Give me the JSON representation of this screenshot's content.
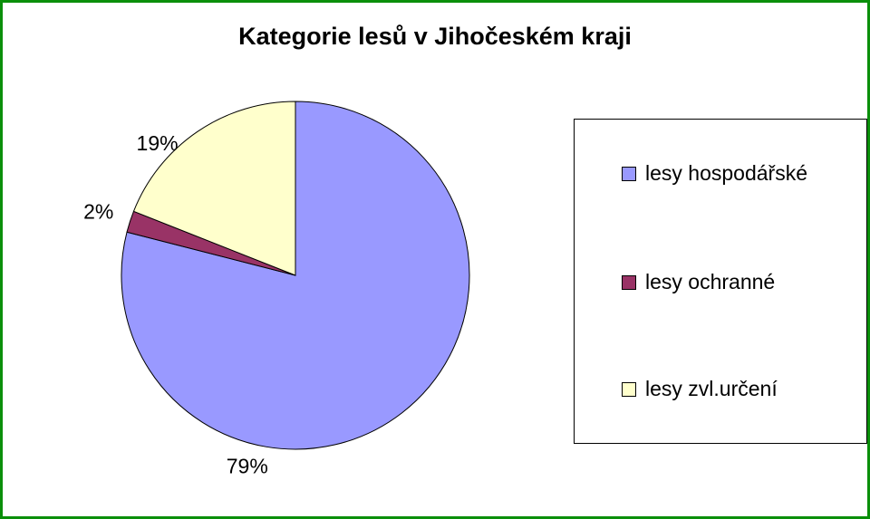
{
  "chart_data": {
    "type": "pie",
    "title": "Kategorie lesů v Jihočeském kraji",
    "categories": [
      "lesy hospodářské",
      "lesy ochranné",
      "lesy zvl.určení"
    ],
    "values": [
      79,
      2,
      19
    ],
    "labels": [
      "79%",
      "2%",
      "19%"
    ],
    "colors": [
      "#9999ff",
      "#993366",
      "#ffffcc"
    ],
    "legend_position": "right",
    "start": "top",
    "direction": "clockwise"
  },
  "theme": {
    "border_color": "#0a8f0a",
    "slice_outline": "#000000"
  }
}
